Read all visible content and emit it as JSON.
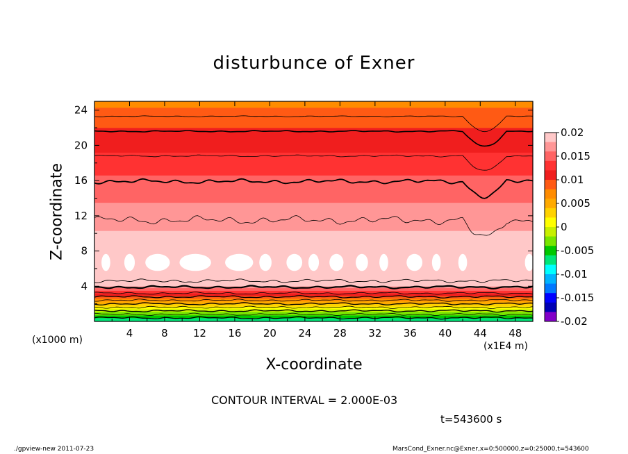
{
  "chart_data": {
    "type": "heatmap",
    "title": "disturbunce of Exner",
    "xlabel": "X-coordinate",
    "ylabel": "Z-coordinate",
    "x_unit_label": "(x1E4 m)",
    "y_unit_label": "(x1000 m)",
    "xlim": [
      0,
      50
    ],
    "ylim": [
      0,
      25
    ],
    "x_ticks": [
      "4",
      "8",
      "12",
      "16",
      "20",
      "24",
      "28",
      "32",
      "36",
      "40",
      "44",
      "48"
    ],
    "y_ticks": [
      "4",
      "8",
      "12",
      "16",
      "20",
      "24"
    ],
    "colorbar": {
      "range": [
        -0.02,
        0.02
      ],
      "tick_labels": [
        "0.02",
        "0.015",
        "0.01",
        "0.005",
        "0",
        "-0.005",
        "-0.01",
        "-0.015",
        "-0.02"
      ],
      "colors": [
        "#ffc8c8",
        "#ff9696",
        "#ff6464",
        "#ff3232",
        "#f01e1e",
        "#ff5a14",
        "#ff8c00",
        "#ffaa00",
        "#ffd200",
        "#ffff00",
        "#c8f000",
        "#78e600",
        "#00c800",
        "#00e678",
        "#00ffff",
        "#00b4ff",
        "#0078ff",
        "#0000ff",
        "#0000b4",
        "#8200c8"
      ]
    },
    "profile": [
      {
        "z": 0.3,
        "value": -0.0065
      },
      {
        "z": 1.0,
        "value": -0.0025
      },
      {
        "z": 1.7,
        "value": 0.002
      },
      {
        "z": 2.4,
        "value": 0.0065
      },
      {
        "z": 3.0,
        "value": 0.011
      },
      {
        "z": 3.7,
        "value": 0.0155
      },
      {
        "z": 4.0,
        "value": 0.018
      },
      {
        "z": 5.0,
        "value": 0.0195
      },
      {
        "z": 6.5,
        "value": 0.0205
      },
      {
        "z": 9.0,
        "value": 0.019
      },
      {
        "z": 11.0,
        "value": 0.0175
      },
      {
        "z": 13.5,
        "value": 0.016
      },
      {
        "z": 15.9,
        "value": 0.0145
      },
      {
        "z": 18.5,
        "value": 0.0125
      },
      {
        "z": 21.5,
        "value": 0.0105
      },
      {
        "z": 23.0,
        "value": 0.009
      },
      {
        "z": 25.0,
        "value": 0.0075
      }
    ]
  },
  "annotations": {
    "contour_interval": "CONTOUR INTERVAL = 2.000E-03",
    "time": "t=543600 s"
  },
  "footer": {
    "left": "./gpview-new  2011-07-23",
    "right": "MarsCond_Exner.nc@Exner,x=0:500000,z=0:25000,t=543600"
  }
}
